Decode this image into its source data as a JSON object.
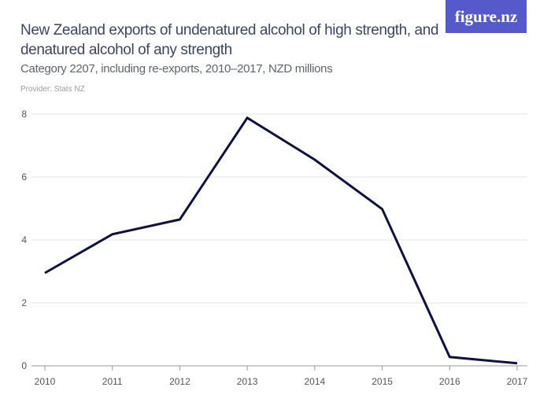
{
  "header": {
    "title": "New Zealand exports of undenatured alcohol of high strength, and denatured alcohol of any strength",
    "subtitle": "Category 2207, including re-exports, 2010–2017, NZD millions",
    "provider": "Provider: Stats NZ",
    "logo": "figure.nz"
  },
  "colors": {
    "line": "#0d1240",
    "grid": "#e3e3e3",
    "logo_bg": "#5659c9"
  },
  "chart_data": {
    "type": "line",
    "title": "New Zealand exports of undenatured alcohol of high strength, and denatured alcohol of any strength",
    "subtitle": "Category 2207, including re-exports, 2010–2017, NZD millions",
    "x": [
      "2010",
      "2011",
      "2012",
      "2013",
      "2014",
      "2015",
      "2016",
      "2017"
    ],
    "series": [
      {
        "values": [
          2.95,
          4.18,
          4.65,
          7.88,
          6.55,
          4.98,
          0.28,
          0.08
        ]
      }
    ],
    "yticks": [
      "0",
      "2",
      "4",
      "6",
      "8"
    ],
    "ylim": [
      0,
      8
    ],
    "grid": true
  }
}
